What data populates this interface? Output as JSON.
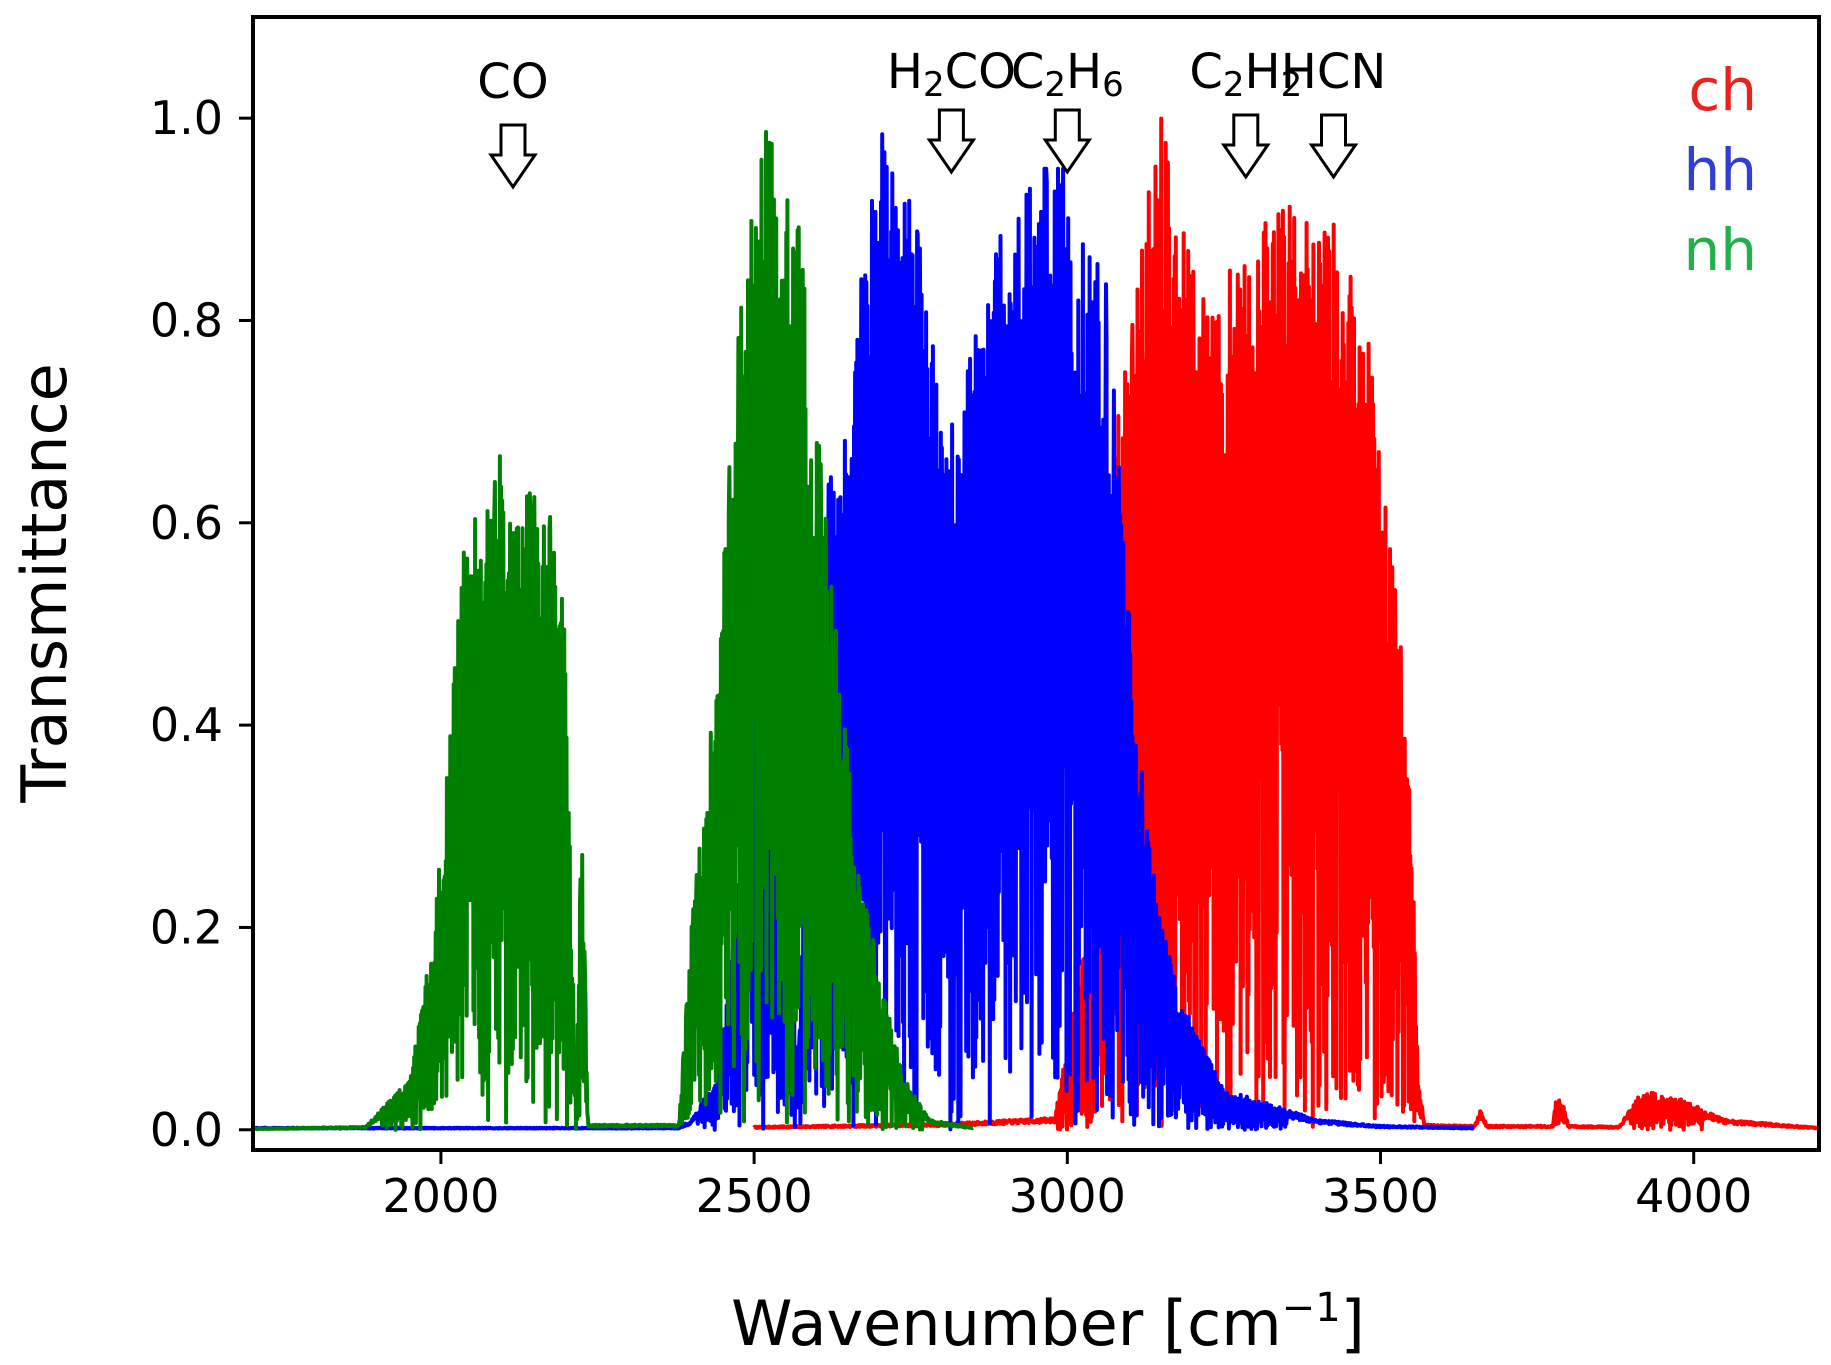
{
  "chart_data": {
    "type": "line",
    "title": "",
    "xlabel": "Wavenumber [cm⁻¹]",
    "ylabel": "Transmittance",
    "xlim": [
      1700,
      4200
    ],
    "ylim": [
      -0.02,
      1.1
    ],
    "x_ticks": [
      2000,
      2500,
      3000,
      3500,
      4000
    ],
    "x_tick_labels": [
      "2000",
      "2500",
      "3000",
      "3500",
      "4000"
    ],
    "y_ticks": [
      0.0,
      0.2,
      0.4,
      0.6,
      0.8,
      1.0
    ],
    "y_tick_labels": [
      "0.0",
      "0.2",
      "0.4",
      "0.6",
      "0.8",
      "1.0"
    ],
    "grid": false,
    "legend_position": "top-right",
    "series": [
      {
        "name": "ch",
        "color": "#ff0000",
        "x_range": [
          2500,
          4200
        ],
        "envelope": [
          [
            2500,
            0.003
          ],
          [
            2800,
            0.006
          ],
          [
            2980,
            0.012
          ],
          [
            3060,
            0.3
          ],
          [
            3080,
            0.7
          ],
          [
            3110,
            0.82
          ],
          [
            3140,
            0.98
          ],
          [
            3150,
            1.0
          ],
          [
            3170,
            0.93
          ],
          [
            3200,
            0.85
          ],
          [
            3230,
            0.8
          ],
          [
            3260,
            0.85
          ],
          [
            3300,
            0.88
          ],
          [
            3340,
            0.92
          ],
          [
            3380,
            0.9
          ],
          [
            3420,
            0.9
          ],
          [
            3440,
            0.88
          ],
          [
            3460,
            0.84
          ],
          [
            3490,
            0.75
          ],
          [
            3510,
            0.6
          ],
          [
            3530,
            0.5
          ],
          [
            3550,
            0.3
          ],
          [
            3560,
            0.05
          ],
          [
            3570,
            0.005
          ],
          [
            3650,
            0.004
          ],
          [
            3660,
            0.02
          ],
          [
            3670,
            0.004
          ],
          [
            3775,
            0.004
          ],
          [
            3780,
            0.03
          ],
          [
            3790,
            0.028
          ],
          [
            3800,
            0.004
          ],
          [
            3880,
            0.003
          ],
          [
            3920,
            0.04
          ],
          [
            3940,
            0.035
          ],
          [
            3980,
            0.03
          ],
          [
            4050,
            0.01
          ],
          [
            4200,
            0.002
          ]
        ]
      },
      {
        "name": "hh",
        "color": "#0000ff",
        "x_range": [
          1700,
          3650
        ],
        "envelope": [
          [
            1700,
            0.002
          ],
          [
            2380,
            0.002
          ],
          [
            2400,
            0.01
          ],
          [
            2440,
            0.05
          ],
          [
            2470,
            0.2
          ],
          [
            2500,
            0.45
          ],
          [
            2530,
            0.6
          ],
          [
            2550,
            0.3
          ],
          [
            2570,
            0.05
          ],
          [
            2600,
            0.6
          ],
          [
            2650,
            0.7
          ],
          [
            2680,
            0.9
          ],
          [
            2700,
            0.98
          ],
          [
            2715,
            1.0
          ],
          [
            2740,
            0.97
          ],
          [
            2770,
            0.85
          ],
          [
            2800,
            0.72
          ],
          [
            2820,
            0.7
          ],
          [
            2860,
            0.8
          ],
          [
            2900,
            0.9
          ],
          [
            2940,
            0.93
          ],
          [
            2960,
            0.95
          ],
          [
            3000,
            0.95
          ],
          [
            3010,
            0.86
          ],
          [
            3040,
            0.9
          ],
          [
            3060,
            0.85
          ],
          [
            3090,
            0.6
          ],
          [
            3110,
            0.4
          ],
          [
            3150,
            0.2
          ],
          [
            3200,
            0.1
          ],
          [
            3250,
            0.04
          ],
          [
            3300,
            0.03
          ],
          [
            3400,
            0.01
          ],
          [
            3500,
            0.004
          ],
          [
            3650,
            0.002
          ]
        ]
      },
      {
        "name": "nh",
        "color": "#008000",
        "x_range": [
          1700,
          2850
        ],
        "envelope": [
          [
            1700,
            0.001
          ],
          [
            1880,
            0.003
          ],
          [
            1950,
            0.05
          ],
          [
            1990,
            0.2
          ],
          [
            2020,
            0.45
          ],
          [
            2040,
            0.6
          ],
          [
            2080,
            0.62
          ],
          [
            2095,
            0.67
          ],
          [
            2110,
            0.6
          ],
          [
            2140,
            0.63
          ],
          [
            2160,
            0.62
          ],
          [
            2180,
            0.6
          ],
          [
            2195,
            0.55
          ],
          [
            2205,
            0.3
          ],
          [
            2215,
            0.05
          ],
          [
            2225,
            0.3
          ],
          [
            2235,
            0.005
          ],
          [
            2380,
            0.005
          ],
          [
            2400,
            0.2
          ],
          [
            2440,
            0.45
          ],
          [
            2470,
            0.75
          ],
          [
            2500,
            0.95
          ],
          [
            2520,
            1.0
          ],
          [
            2540,
            0.97
          ],
          [
            2570,
            0.9
          ],
          [
            2600,
            0.7
          ],
          [
            2630,
            0.5
          ],
          [
            2660,
            0.3
          ],
          [
            2700,
            0.15
          ],
          [
            2740,
            0.05
          ],
          [
            2780,
            0.01
          ],
          [
            2850,
            0.002
          ]
        ]
      }
    ],
    "annotations": [
      {
        "label": "CO",
        "x": 2115,
        "arrow": true
      },
      {
        "label_main": "H",
        "label_sub": "2",
        "label_rest": "CO",
        "x": 2815,
        "arrow": true
      },
      {
        "label_main": "C",
        "label_sub": "2",
        "label_mid": "H",
        "label_sub2": "6",
        "x": 3000,
        "arrow": true
      },
      {
        "label_main": "C",
        "label_sub": "2",
        "label_mid": "H",
        "label_sub2": "2",
        "x": 3285,
        "arrow": true
      },
      {
        "label": "HCN",
        "x": 3425,
        "arrow": true
      }
    ]
  }
}
